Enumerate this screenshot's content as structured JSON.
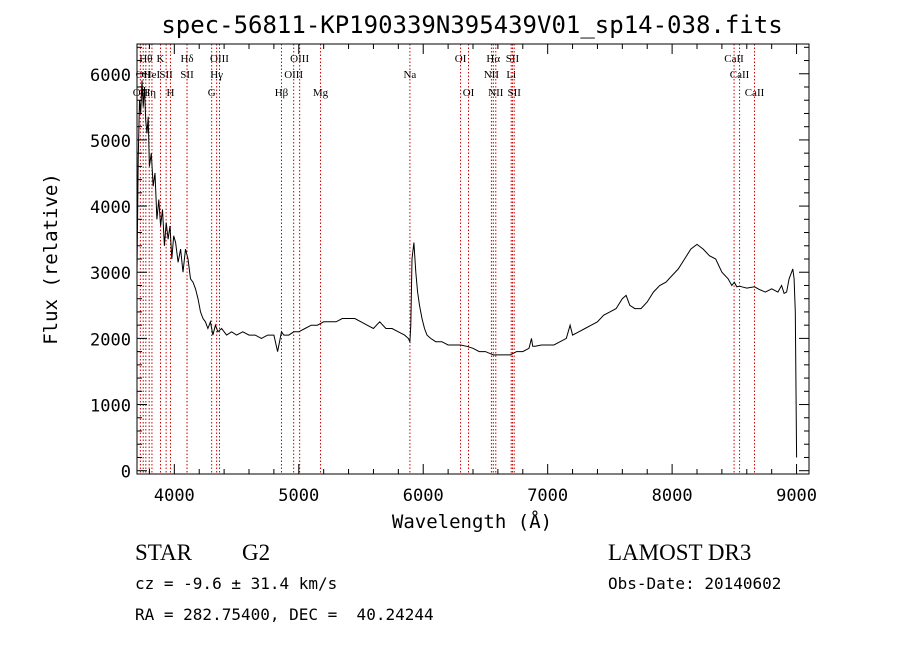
{
  "chart_data": {
    "type": "line",
    "title": "spec-56811-KP190339N395439V01_sp14-038.fits",
    "xlabel": "Wavelength (Å)",
    "ylabel": "Flux (relative)",
    "xlim": [
      3700,
      9100
    ],
    "ylim": [
      -50,
      6450
    ],
    "xticks": [
      4000,
      5000,
      6000,
      7000,
      8000,
      9000
    ],
    "yticks": [
      0,
      1000,
      2000,
      3000,
      4000,
      5000,
      6000
    ],
    "grid": false,
    "line_color": "#000000",
    "marker_color": "#cc0000",
    "series": [
      {
        "x": [
          3700,
          3710,
          3720,
          3730,
          3740,
          3750,
          3760,
          3770,
          3780,
          3790,
          3800,
          3815,
          3830,
          3845,
          3860,
          3875,
          3890,
          3905,
          3920,
          3935,
          3950,
          3965,
          3980,
          3995,
          4010,
          4030,
          4050,
          4070,
          4090,
          4110,
          4130,
          4150,
          4170,
          4190,
          4210,
          4230,
          4250,
          4270,
          4290,
          4310,
          4330,
          4350,
          4380,
          4420,
          4460,
          4500,
          4550,
          4600,
          4650,
          4700,
          4750,
          4800,
          4830,
          4861,
          4880,
          4920,
          4960,
          5000,
          5050,
          5100,
          5150,
          5200,
          5250,
          5300,
          5350,
          5400,
          5450,
          5500,
          5550,
          5600,
          5650,
          5700,
          5750,
          5800,
          5850,
          5880,
          5893,
          5900,
          5910,
          5925,
          5940,
          5955,
          5970,
          5990,
          6010,
          6030,
          6060,
          6100,
          6150,
          6200,
          6250,
          6300,
          6350,
          6400,
          6450,
          6500,
          6563,
          6600,
          6650,
          6700,
          6750,
          6800,
          6850,
          6870,
          6880,
          6900,
          6950,
          7000,
          7050,
          7100,
          7150,
          7180,
          7200,
          7250,
          7300,
          7350,
          7400,
          7450,
          7500,
          7550,
          7600,
          7630,
          7660,
          7700,
          7750,
          7800,
          7850,
          7900,
          7950,
          8000,
          8050,
          8100,
          8150,
          8200,
          8250,
          8300,
          8350,
          8400,
          8450,
          8480,
          8500,
          8520,
          8542,
          8560,
          8600,
          8662,
          8700,
          8750,
          8800,
          8850,
          8880,
          8900,
          8920,
          8940,
          8960,
          8970,
          8980,
          8990,
          9000
        ],
        "values": [
          3000,
          4700,
          5600,
          5400,
          5900,
          5500,
          5800,
          5300,
          5100,
          5350,
          4600,
          4800,
          4300,
          4500,
          3800,
          4100,
          3700,
          3950,
          3400,
          3750,
          3500,
          3700,
          3200,
          3550,
          3450,
          3150,
          3350,
          3000,
          3350,
          3200,
          2900,
          2850,
          2750,
          2600,
          2400,
          2300,
          2250,
          2150,
          2250,
          2050,
          2200,
          2100,
          2150,
          2050,
          2100,
          2050,
          2100,
          2050,
          2050,
          2000,
          2050,
          2050,
          1800,
          2100,
          2050,
          2050,
          2100,
          2100,
          2150,
          2200,
          2200,
          2250,
          2250,
          2250,
          2300,
          2300,
          2300,
          2250,
          2200,
          2150,
          2250,
          2150,
          2150,
          2100,
          2050,
          2000,
          1950,
          2200,
          3200,
          3450,
          3000,
          2700,
          2500,
          2300,
          2150,
          2050,
          2000,
          1950,
          1950,
          1900,
          1900,
          1900,
          1880,
          1850,
          1800,
          1800,
          1750,
          1750,
          1750,
          1750,
          1800,
          1800,
          1850,
          2000,
          1880,
          1880,
          1900,
          1900,
          1900,
          1950,
          2000,
          2200,
          2050,
          2100,
          2150,
          2200,
          2250,
          2350,
          2400,
          2450,
          2600,
          2650,
          2500,
          2450,
          2450,
          2550,
          2700,
          2800,
          2850,
          2950,
          3050,
          3200,
          3350,
          3420,
          3350,
          3250,
          3200,
          3000,
          2900,
          2800,
          2850,
          2780,
          2790,
          2780,
          2760,
          2780,
          2740,
          2700,
          2750,
          2700,
          2800,
          2680,
          2700,
          2900,
          3000,
          3050,
          2900,
          2400,
          200
        ]
      }
    ],
    "line_markers": [
      {
        "wave": 3727,
        "label": "OII",
        "row": 3
      },
      {
        "wave": 3750,
        "label": "OII",
        "row": 2
      },
      {
        "wave": 3771,
        "label": "Hθ",
        "row": 1
      },
      {
        "wave": 3798,
        "label": "Hη",
        "row": 3
      },
      {
        "wave": 3820,
        "label": "HeI",
        "row": 2
      },
      {
        "wave": 3889,
        "label": "K",
        "row": 1
      },
      {
        "wave": 3934,
        "label": "SII",
        "row": 2
      },
      {
        "wave": 3969,
        "label": "H",
        "row": 3
      },
      {
        "wave": 4102,
        "label": "Hδ",
        "row": 1
      },
      {
        "wave": 4102,
        "label": "SII",
        "row": 2
      },
      {
        "wave": 4300,
        "label": "G",
        "row": 3
      },
      {
        "wave": 4340,
        "label": "Hγ",
        "row": 2
      },
      {
        "wave": 4363,
        "label": "OIII",
        "row": 1
      },
      {
        "wave": 4861,
        "label": "Hβ",
        "row": 3
      },
      {
        "wave": 4959,
        "label": "OIII",
        "row": 2
      },
      {
        "wave": 5007,
        "label": "OIII",
        "row": 1
      },
      {
        "wave": 5175,
        "label": "Mg",
        "row": 3
      },
      {
        "wave": 5893,
        "label": "Na",
        "row": 2
      },
      {
        "wave": 6300,
        "label": "OI",
        "row": 1
      },
      {
        "wave": 6364,
        "label": "OI",
        "row": 3
      },
      {
        "wave": 6548,
        "label": "NII",
        "row": 2
      },
      {
        "wave": 6563,
        "label": "Hα",
        "row": 1
      },
      {
        "wave": 6583,
        "label": "NII",
        "row": 3
      },
      {
        "wave": 6707,
        "label": "Li",
        "row": 2
      },
      {
        "wave": 6717,
        "label": "SII",
        "row": 1
      },
      {
        "wave": 6731,
        "label": "SII",
        "row": 3
      },
      {
        "wave": 8498,
        "label": "CaII",
        "row": 1
      },
      {
        "wave": 8542,
        "label": "CaII",
        "row": 2
      },
      {
        "wave": 8662,
        "label": "CaII",
        "row": 3
      }
    ]
  },
  "info": {
    "class_label": "STAR",
    "subclass": "G2",
    "survey": "LAMOST DR3",
    "redshift": "cz = -9.6 ± 31.4 km/s",
    "obs_date": "Obs-Date: 20140602",
    "coords": "RA = 282.75400, DEC =  40.24244"
  }
}
